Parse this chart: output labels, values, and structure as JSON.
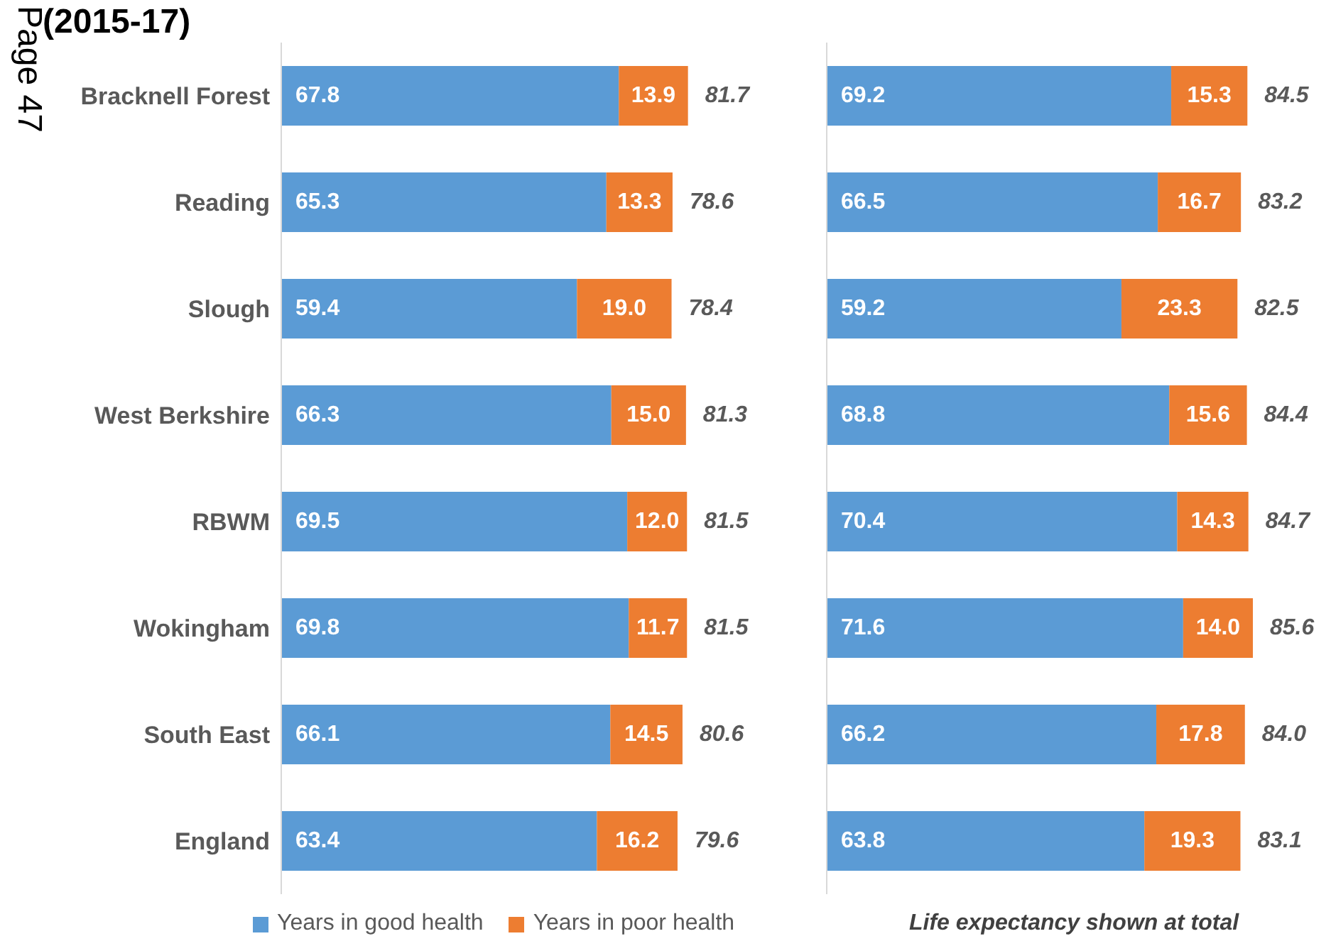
{
  "chart_data": [
    {
      "type": "bar",
      "orientation": "horizontal",
      "stacked": true,
      "title": "(2015-17)",
      "annotations": [
        "Page 47"
      ],
      "categories": [
        "Bracknell Forest",
        "Reading",
        "Slough",
        "West Berkshire",
        "RBWM",
        "Wokingham",
        "South East",
        "England"
      ],
      "series": [
        {
          "name": "Years in good health",
          "color": "#5b9bd5",
          "values": [
            67.8,
            65.3,
            59.4,
            66.3,
            69.5,
            69.8,
            66.1,
            63.4
          ],
          "value_labels": [
            "67.8",
            "65.3",
            "59.4",
            "66.3",
            "69.5",
            "69.8",
            "66.1",
            "63.4"
          ]
        },
        {
          "name": "Years in poor health",
          "color": "#ed7d31",
          "values": [
            13.9,
            13.3,
            19.0,
            15.0,
            12.0,
            11.7,
            14.5,
            16.2
          ],
          "value_labels": [
            "13.9",
            "13.3",
            "19.0",
            "15.0",
            "12.0",
            "11.7",
            "14.5",
            "16.2"
          ]
        }
      ],
      "totals": [
        "81.7",
        "78.6",
        "78.4",
        "81.3",
        "81.5",
        "81.5",
        "80.6",
        "79.6"
      ],
      "legend": "bottom",
      "tick_labels": "y"
    },
    {
      "type": "bar",
      "orientation": "horizontal",
      "stacked": true,
      "annotations": [
        "Life expectancy shown at total"
      ],
      "categories": [
        null,
        null,
        null,
        null,
        null,
        null,
        null,
        null
      ],
      "series": [
        {
          "color": "#5b9bd5",
          "values": [
            69.2,
            66.5,
            59.2,
            68.8,
            70.4,
            71.6,
            66.2,
            63.8
          ],
          "value_labels": [
            "69.2",
            "66.5",
            "59.2",
            "68.8",
            "70.4",
            "71.6",
            "66.2",
            "63.8"
          ]
        },
        {
          "color": "#ed7d31",
          "values": [
            15.3,
            16.7,
            23.3,
            15.6,
            14.3,
            14.0,
            17.8,
            19.3
          ],
          "value_labels": [
            "15.3",
            "16.7",
            "23.3",
            "15.6",
            "14.3",
            "14.0",
            "17.8",
            "19.3"
          ]
        }
      ],
      "totals": [
        "84.5",
        "83.2",
        "82.5",
        "84.4",
        "84.7",
        "85.6",
        "84.0",
        "83.1"
      ],
      "tick_labels": false
    }
  ]
}
